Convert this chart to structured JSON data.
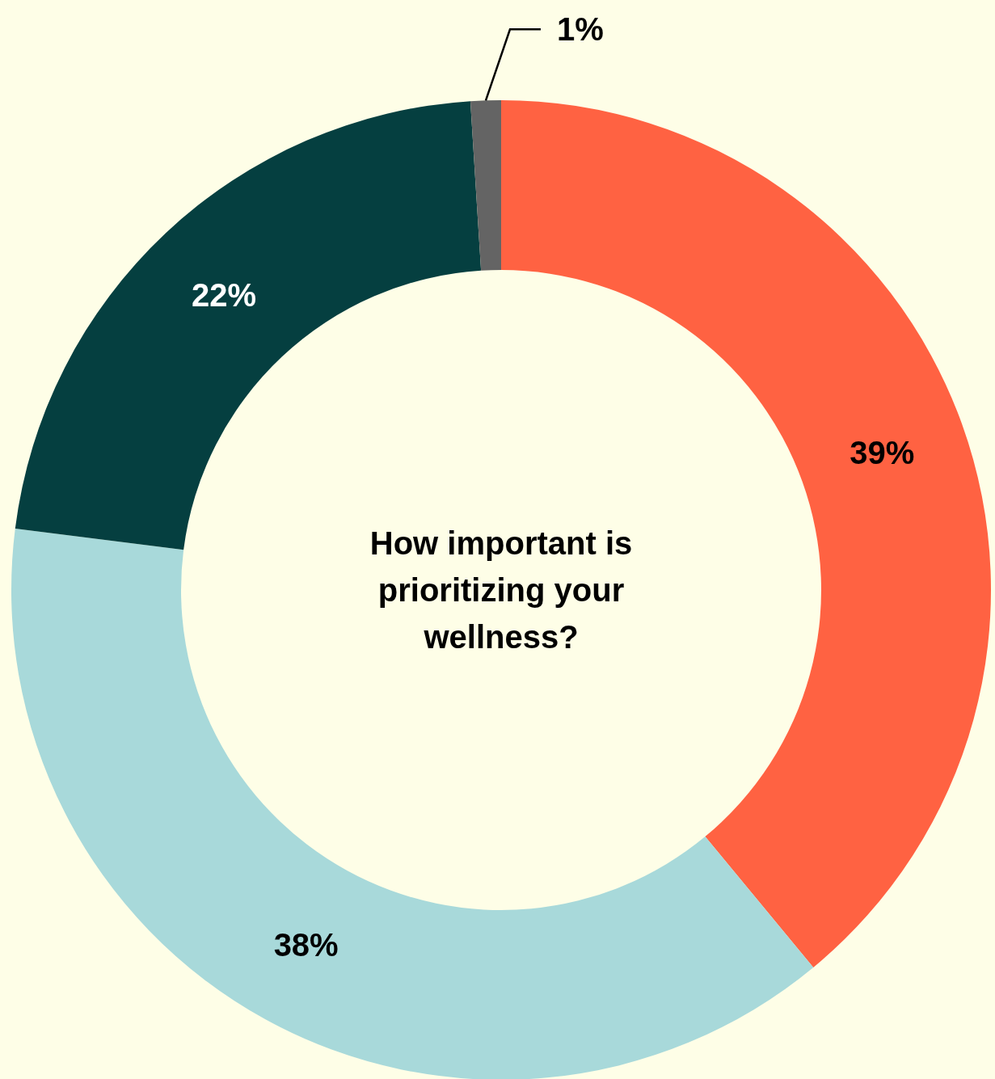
{
  "chart_data": {
    "type": "donut",
    "title": "How important is prioritizing your wellness?",
    "categories": [
      null,
      null,
      null,
      null
    ],
    "values": [
      39,
      38,
      22,
      1
    ],
    "colors": [
      "#ff6242",
      "#a8d9da",
      "#053f40",
      "#646464"
    ],
    "value_labels": [
      "39%",
      "38%",
      "22%",
      "1%"
    ]
  }
}
